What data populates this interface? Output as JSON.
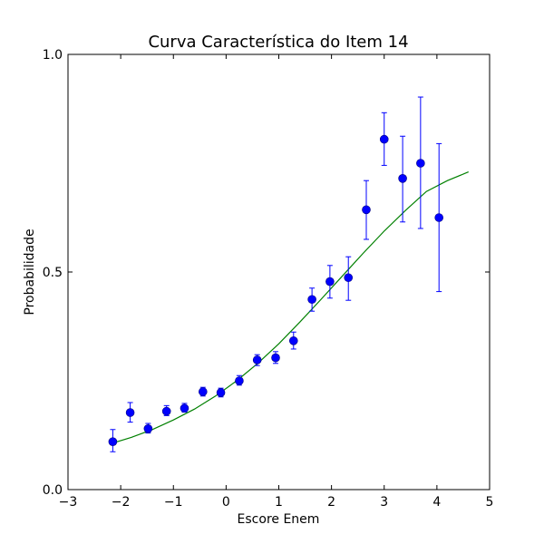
{
  "chart_data": {
    "type": "scatter",
    "title": "Curva Característica do Item 14",
    "xlabel": "Escore Enem",
    "ylabel": "Probabilidade",
    "xlim": [
      -3,
      5
    ],
    "ylim": [
      0.0,
      1.0
    ],
    "x_ticks": [
      -3,
      -2,
      -1,
      0,
      1,
      2,
      3,
      4,
      5
    ],
    "x_tick_labels": [
      "−3",
      "−2",
      "−1",
      "0",
      "1",
      "2",
      "3",
      "4",
      "5"
    ],
    "y_ticks": [
      0.0,
      0.5,
      1.0
    ],
    "y_tick_labels": [
      "0.0",
      "0.5",
      "1.0"
    ],
    "grid": false,
    "colors": {
      "points": "#0000ff",
      "curve": "#008000",
      "axes": "#000000"
    },
    "series": [
      {
        "kind": "observed-points-with-error-bars",
        "points": [
          {
            "x": -2.15,
            "y": 0.11,
            "ylo": 0.087,
            "yhi": 0.138
          },
          {
            "x": -1.82,
            "y": 0.177,
            "ylo": 0.155,
            "yhi": 0.2
          },
          {
            "x": -1.48,
            "y": 0.14,
            "ylo": 0.13,
            "yhi": 0.152
          },
          {
            "x": -1.13,
            "y": 0.18,
            "ylo": 0.17,
            "yhi": 0.193
          },
          {
            "x": -0.79,
            "y": 0.187,
            "ylo": 0.178,
            "yhi": 0.198
          },
          {
            "x": -0.44,
            "y": 0.225,
            "ylo": 0.215,
            "yhi": 0.235
          },
          {
            "x": -0.1,
            "y": 0.223,
            "ylo": 0.213,
            "yhi": 0.233
          },
          {
            "x": 0.25,
            "y": 0.25,
            "ylo": 0.24,
            "yhi": 0.262
          },
          {
            "x": 0.59,
            "y": 0.298,
            "ylo": 0.285,
            "yhi": 0.31
          },
          {
            "x": 0.94,
            "y": 0.303,
            "ylo": 0.29,
            "yhi": 0.317
          },
          {
            "x": 1.28,
            "y": 0.342,
            "ylo": 0.323,
            "yhi": 0.362
          },
          {
            "x": 1.63,
            "y": 0.437,
            "ylo": 0.41,
            "yhi": 0.463
          },
          {
            "x": 1.97,
            "y": 0.478,
            "ylo": 0.44,
            "yhi": 0.515
          },
          {
            "x": 2.32,
            "y": 0.487,
            "ylo": 0.435,
            "yhi": 0.535
          },
          {
            "x": 2.66,
            "y": 0.643,
            "ylo": 0.575,
            "yhi": 0.71
          },
          {
            "x": 3.0,
            "y": 0.805,
            "ylo": 0.745,
            "yhi": 0.866
          },
          {
            "x": 3.35,
            "y": 0.715,
            "ylo": 0.615,
            "yhi": 0.812
          },
          {
            "x": 3.69,
            "y": 0.75,
            "ylo": 0.6,
            "yhi": 0.902
          },
          {
            "x": 4.04,
            "y": 0.625,
            "ylo": 0.455,
            "yhi": 0.795
          }
        ]
      },
      {
        "kind": "fitted-curve",
        "points": [
          {
            "x": -2.2,
            "y": 0.105
          },
          {
            "x": -1.8,
            "y": 0.12
          },
          {
            "x": -1.4,
            "y": 0.138
          },
          {
            "x": -1.0,
            "y": 0.16
          },
          {
            "x": -0.6,
            "y": 0.185
          },
          {
            "x": -0.2,
            "y": 0.215
          },
          {
            "x": 0.2,
            "y": 0.25
          },
          {
            "x": 0.6,
            "y": 0.29
          },
          {
            "x": 1.0,
            "y": 0.335
          },
          {
            "x": 1.4,
            "y": 0.385
          },
          {
            "x": 1.8,
            "y": 0.437
          },
          {
            "x": 2.2,
            "y": 0.49
          },
          {
            "x": 2.6,
            "y": 0.543
          },
          {
            "x": 3.0,
            "y": 0.594
          },
          {
            "x": 3.4,
            "y": 0.641
          },
          {
            "x": 3.8,
            "y": 0.685
          },
          {
            "x": 4.2,
            "y": 0.71
          },
          {
            "x": 4.6,
            "y": 0.73
          }
        ]
      }
    ]
  }
}
